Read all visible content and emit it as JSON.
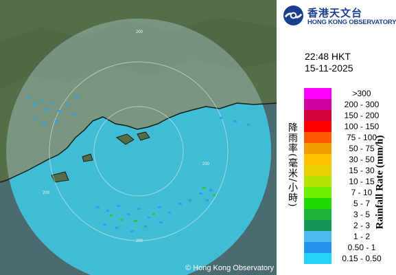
{
  "app": {
    "logo_chinese": "香港天文台",
    "logo_english": "HONG KONG OBSERVATORY",
    "copyright": "© Hong Kong Observatory"
  },
  "timestamp": {
    "time": "22:48 HKT",
    "date": "15-11-2025"
  },
  "map": {
    "range_ring_labels": [
      "200",
      "200",
      "200",
      "200"
    ],
    "colors": {
      "sea": "#4f6f74",
      "land": "#556e48",
      "radar_coverage": "#b9e3ec",
      "weak_echo": "#29a3f0",
      "medium_echo": "#27c84a"
    }
  },
  "legend": {
    "title_chinese": "降雨率(毫米/小時)",
    "title_english": "Rainfall Rate (mm/h)",
    "items": [
      {
        "label": ">300",
        "color": "#ff00ff"
      },
      {
        "label": "200 - 300",
        "color": "#d000a2"
      },
      {
        "label": "150 - 200",
        "color": "#d3003a"
      },
      {
        "label": "100 - 150",
        "color": "#ff0000"
      },
      {
        "label": "75 - 100",
        "color": "#ff5a00"
      },
      {
        "label": "50 - 75",
        "color": "#f29c00"
      },
      {
        "label": "30 - 50",
        "color": "#ffc000"
      },
      {
        "label": "15 - 30",
        "color": "#e6d000"
      },
      {
        "label": "10 - 15",
        "color": "#b4e400"
      },
      {
        "label": "7 - 10",
        "color": "#6df000"
      },
      {
        "label": "5 - 7",
        "color": "#21d800"
      },
      {
        "label": "3 - 5",
        "color": "#1cb43b"
      },
      {
        "label": "2 - 3",
        "color": "#169656"
      },
      {
        "label": "1 - 2",
        "color": "#4bb8f0"
      },
      {
        "label": "0.50 - 1",
        "color": "#2392e8"
      },
      {
        "label": "0.15 - 0.50",
        "color": "#24d3f7"
      }
    ]
  }
}
